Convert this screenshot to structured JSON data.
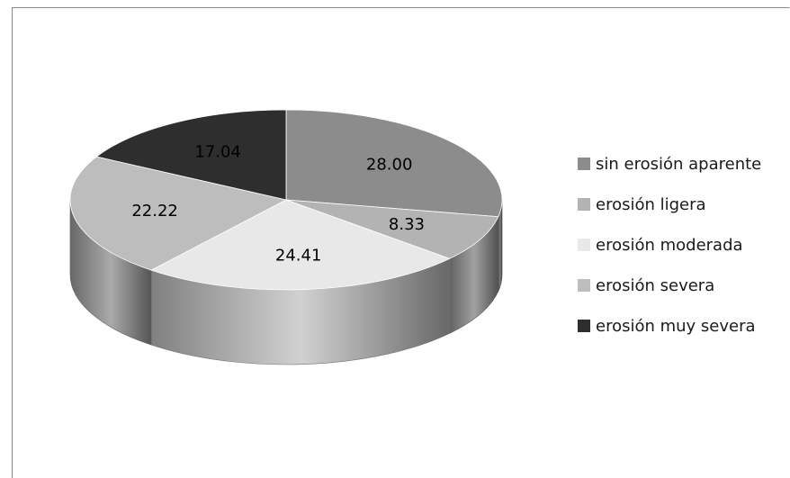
{
  "chart_data": {
    "type": "pie",
    "style": "3d",
    "title": "",
    "categories": [
      "sin erosión aparente",
      "erosión ligera",
      "erosión moderada",
      "erosión severa",
      "erosión muy severa"
    ],
    "values": [
      28.0,
      8.33,
      24.41,
      22.22,
      17.04
    ],
    "labels": [
      "28.00",
      "8.33",
      "24.41",
      "22.22",
      "17.04"
    ],
    "colors": [
      "#8c8c8c",
      "#b3b3b3",
      "#e8e8e8",
      "#bdbdbd",
      "#2e2e2e"
    ],
    "legend": {
      "position": "right"
    },
    "start_angle": "12 o'clock",
    "direction": "clockwise"
  }
}
